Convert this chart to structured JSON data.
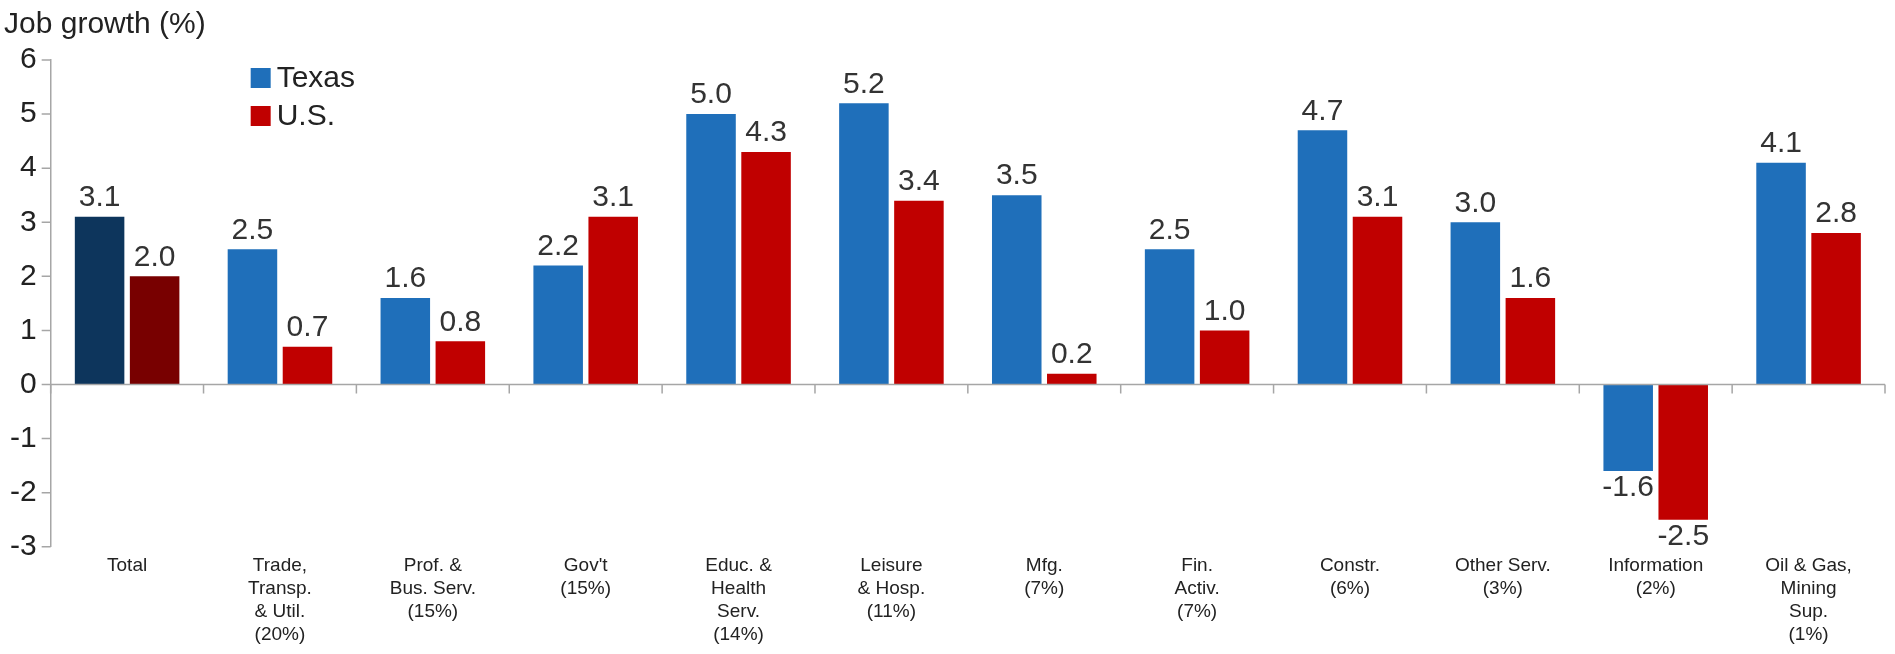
{
  "chart_data": {
    "type": "bar",
    "ylabel": "Job growth (%)",
    "categories": [
      "Total",
      "Trade,\nTransp.\n& Util.\n(20%)",
      "Prof. &\nBus. Serv.\n(15%)",
      "Gov't\n(15%)",
      "Educ. &\nHealth\nServ.\n(14%)",
      "Leisure\n& Hosp.\n(11%)",
      "Mfg.\n(7%)",
      "Fin.\nActiv.\n(7%)",
      "Constr.\n(6%)",
      "Other Serv.\n(3%)",
      "Information\n(2%)",
      "Oil & Gas,\nMining\nSup.\n(1%)"
    ],
    "series": [
      {
        "name": "Texas",
        "color": "#1f6fba",
        "colors": [
          "#0d355c",
          "#1f6fba",
          "#1f6fba",
          "#1f6fba",
          "#1f6fba",
          "#1f6fba",
          "#1f6fba",
          "#1f6fba",
          "#1f6fba",
          "#1f6fba",
          "#1f6fba",
          "#1f6fba"
        ],
        "values": [
          3.1,
          2.5,
          1.6,
          2.2,
          5.0,
          5.2,
          3.5,
          2.5,
          4.7,
          3.0,
          -1.6,
          4.1
        ],
        "value_labels": [
          "3.1",
          "2.5",
          "1.6",
          "2.2",
          "5.0",
          "5.2",
          "3.5",
          "2.5",
          "4.7",
          "3.0",
          "-1.6",
          "4.1"
        ]
      },
      {
        "name": "U.S.",
        "color": "#c00000",
        "colors": [
          "#780000",
          "#c00000",
          "#c00000",
          "#c00000",
          "#c00000",
          "#c00000",
          "#c00000",
          "#c00000",
          "#c00000",
          "#c00000",
          "#c00000",
          "#c00000"
        ],
        "values": [
          2.0,
          0.7,
          0.8,
          3.1,
          4.3,
          3.4,
          0.2,
          1.0,
          3.1,
          1.6,
          -2.5,
          2.8
        ],
        "value_labels": [
          "2.0",
          "0.7",
          "0.8",
          "3.1",
          "4.3",
          "3.4",
          "0.2",
          "1.0",
          "3.1",
          "1.6",
          "-2.5",
          "2.8"
        ]
      }
    ],
    "ylim": [
      -3,
      6
    ],
    "yticks": [
      -3,
      -2,
      -1,
      0,
      1,
      2,
      3,
      4,
      5,
      6
    ],
    "legend": "top left"
  }
}
